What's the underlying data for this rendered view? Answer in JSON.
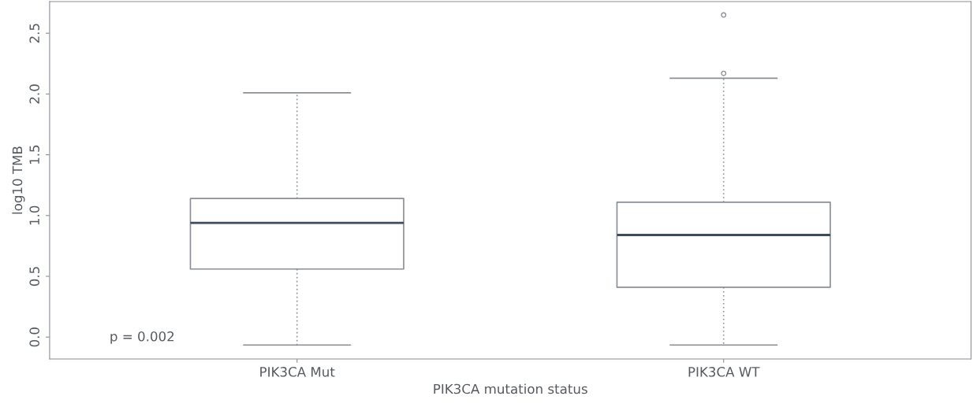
{
  "chart_data": {
    "type": "box",
    "xlabel": "PIK3CA mutation status",
    "ylabel": "log10 TMB",
    "categories": [
      "PIK3CA Mut",
      "PIK3CA WT"
    ],
    "boxes": [
      {
        "low": -0.065,
        "q1": 0.56,
        "median": 0.94,
        "q3": 1.14,
        "high": 2.01
      },
      {
        "low": -0.065,
        "q1": 0.41,
        "median": 0.84,
        "q3": 1.11,
        "high": 2.13,
        "outliers": [
          2.17,
          2.65
        ]
      }
    ],
    "color": "#8a8f96",
    "ylim": [
      -0.18,
      2.76
    ],
    "yticks": [
      {
        "value": 0,
        "label": "0.0"
      },
      0.5,
      {
        "value": 1,
        "label": "1.0"
      },
      1.5,
      {
        "value": 2,
        "label": "2.0"
      },
      2.5
    ],
    "annotations": [
      "p = 0.002"
    ],
    "grid": false,
    "legend": false
  }
}
